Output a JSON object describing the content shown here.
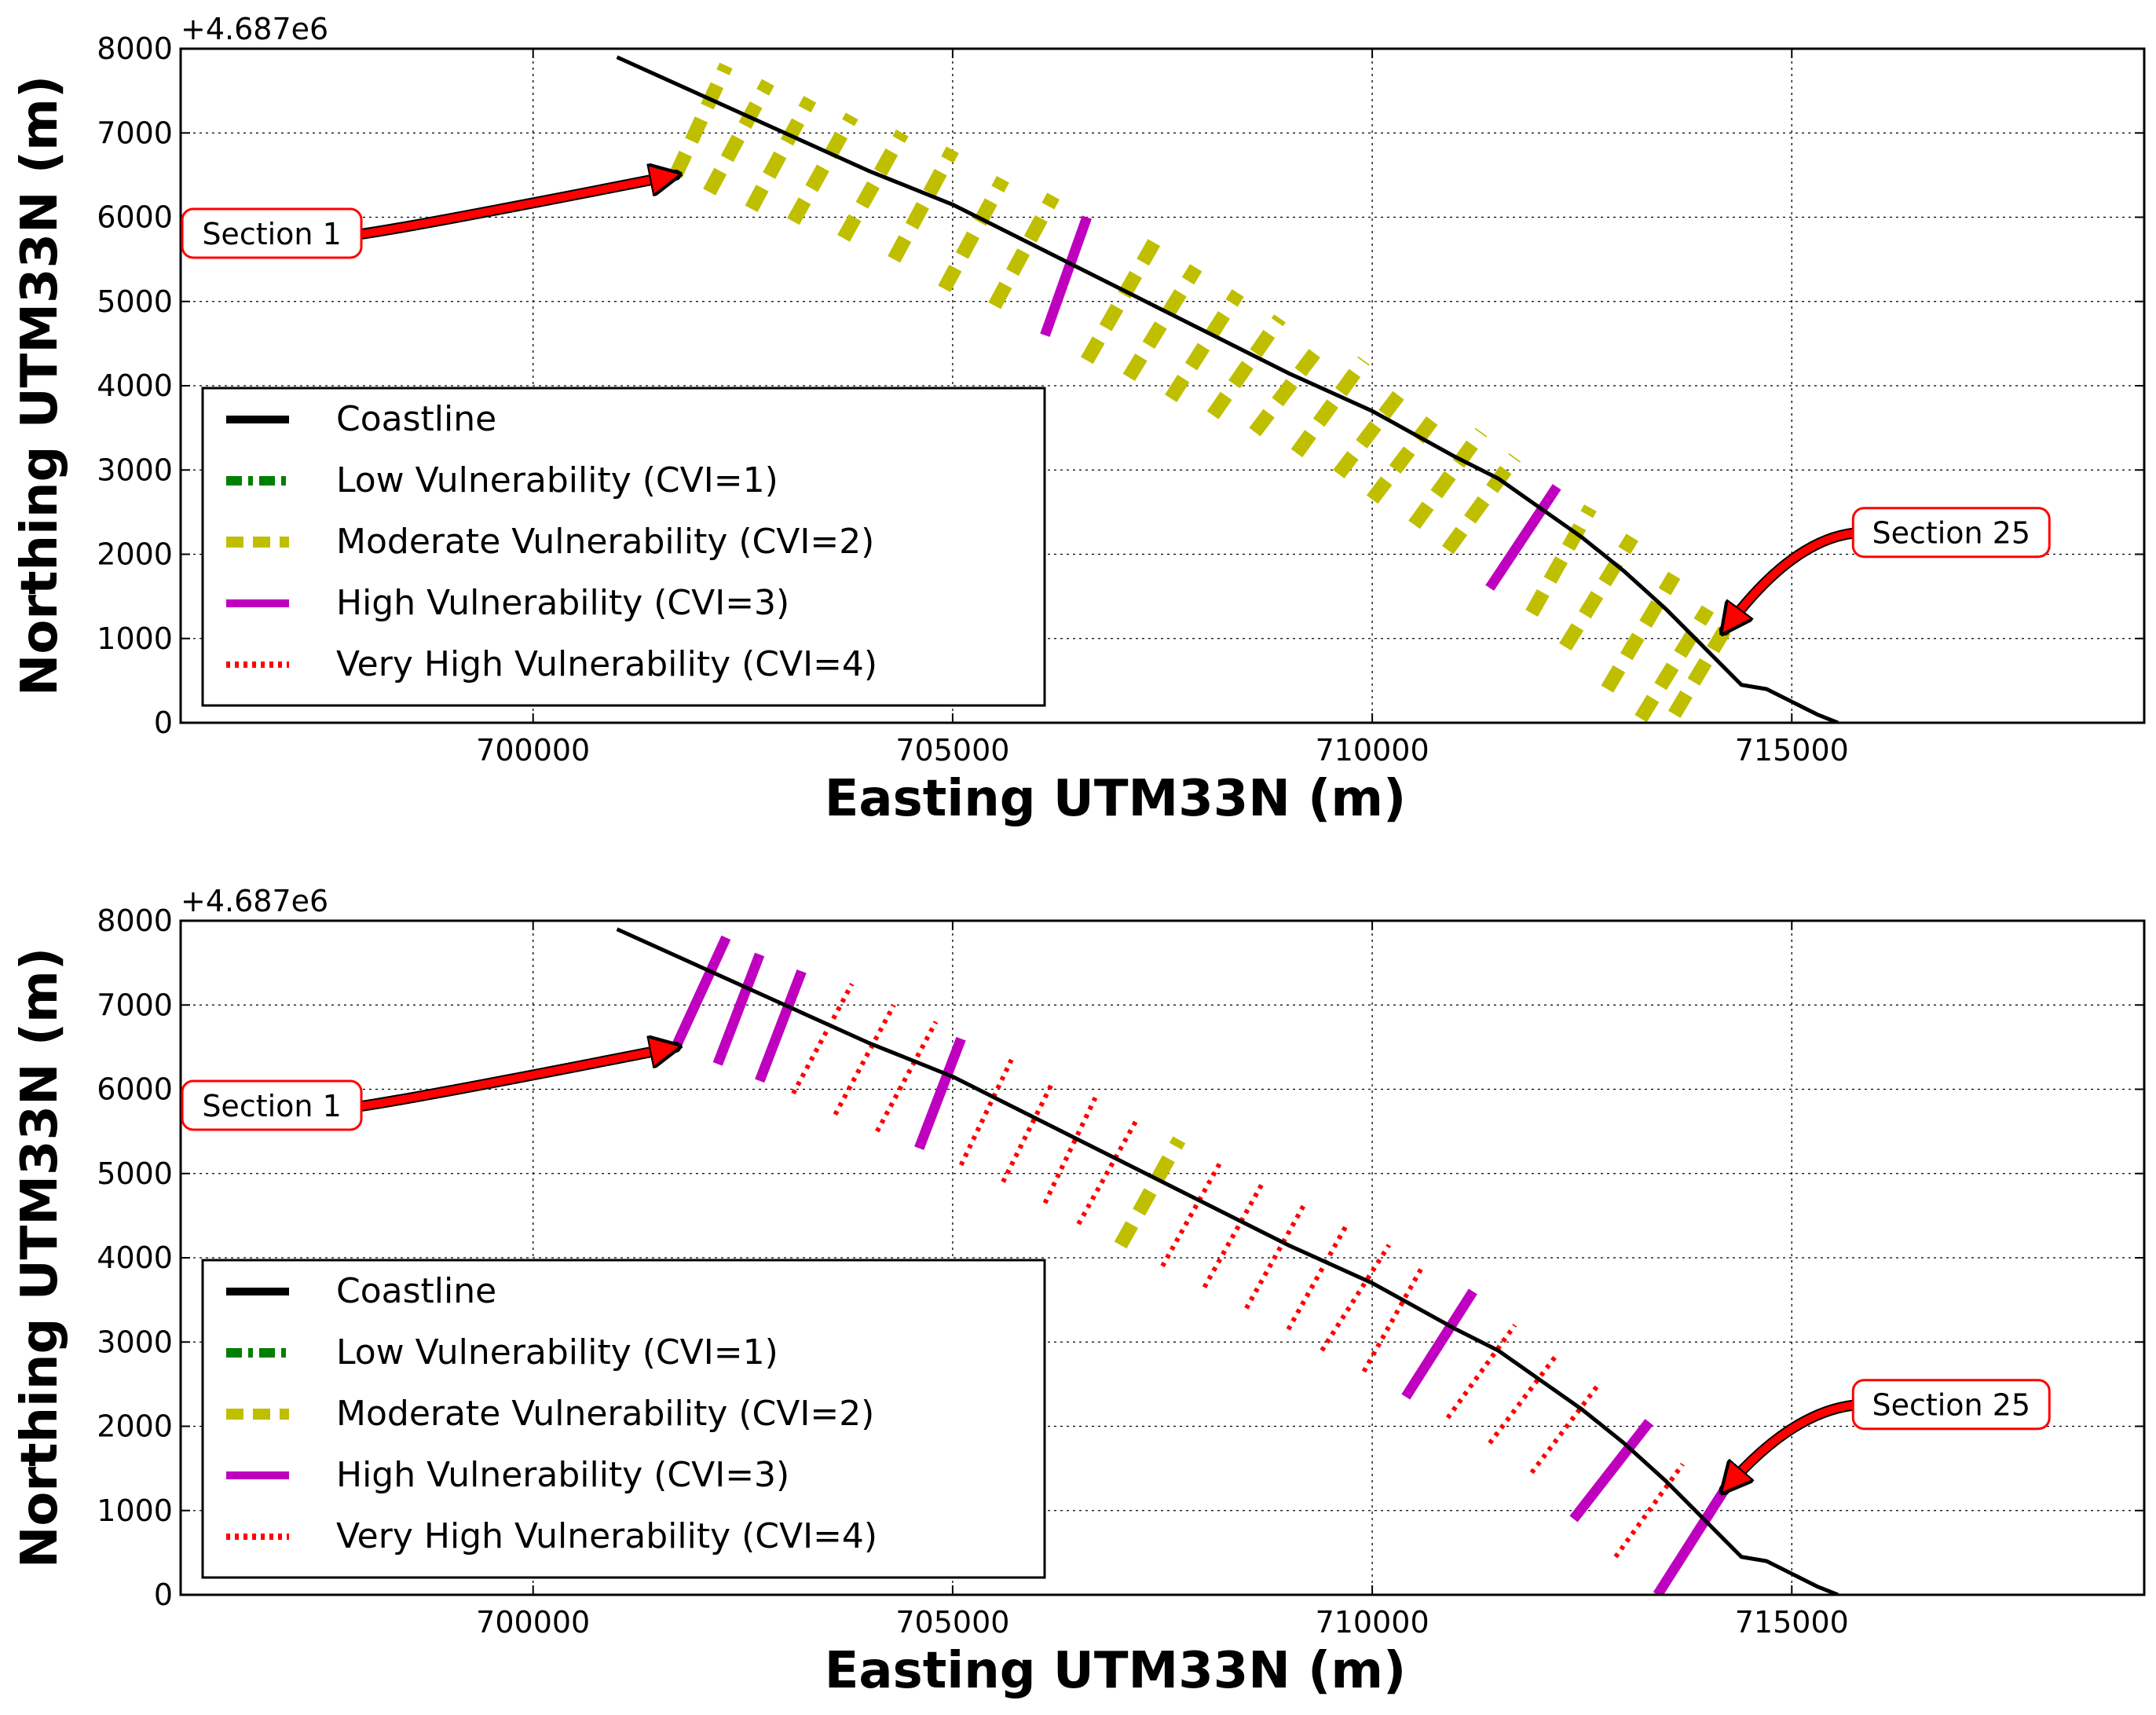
{
  "chart_data": [
    {
      "type": "line",
      "panel": "top",
      "offset_label": "+4.687e6",
      "xlabel": "Easting UTM33N (m)",
      "ylabel": "Northing UTM33N (m)",
      "xlim": [
        695800,
        719200
      ],
      "ylim": [
        0,
        8000
      ],
      "xticks": [
        700000,
        705000,
        710000,
        715000
      ],
      "xtick_labels": [
        "700000",
        "705000",
        "710000",
        "715000"
      ],
      "yticks": [
        0,
        1000,
        2000,
        3000,
        4000,
        5000,
        6000,
        7000,
        8000
      ],
      "ytick_labels": [
        "0",
        "1000",
        "2000",
        "3000",
        "4000",
        "5000",
        "6000",
        "7000",
        "8000"
      ],
      "grid": true,
      "legend": {
        "placement": "lower-left",
        "entries": [
          {
            "label": "Coastline",
            "color": "#000000",
            "style": "solid"
          },
          {
            "label": "Low Vulnerability (CVI=1)",
            "color": "#008000",
            "style": "dashdot"
          },
          {
            "label": "Moderate Vulnerability (CVI=2)",
            "color": "#bfbf00",
            "style": "dashed"
          },
          {
            "label": "High Vulnerability (CVI=3)",
            "color": "#bf00bf",
            "style": "solid"
          },
          {
            "label": "Very High Vulnerability (CVI=4)",
            "color": "#ff0000",
            "style": "dotted"
          }
        ]
      },
      "coastline": {
        "x": [
          701000,
          702000,
          703000,
          704000,
          705000,
          706000,
          707000,
          708000,
          709000,
          710000,
          711000,
          711500,
          712000,
          712500,
          713000,
          713500,
          714000,
          714400,
          714700,
          715000,
          715300,
          715550
        ],
        "y": [
          7900,
          7450,
          7000,
          6550,
          6150,
          5650,
          5150,
          4650,
          4150,
          3700,
          3150,
          2900,
          2550,
          2200,
          1800,
          1350,
          850,
          450,
          400,
          250,
          100,
          0
        ]
      },
      "sections": [
        {
          "id": 1,
          "cvi": 2,
          "x1": 701700,
          "y1": 6500,
          "x2": 702300,
          "y2": 7800
        },
        {
          "id": 2,
          "cvi": 2,
          "x1": 702100,
          "y1": 6300,
          "x2": 702800,
          "y2": 7600
        },
        {
          "id": 3,
          "cvi": 2,
          "x1": 702600,
          "y1": 6100,
          "x2": 703300,
          "y2": 7400
        },
        {
          "id": 4,
          "cvi": 2,
          "x1": 703100,
          "y1": 5950,
          "x2": 703800,
          "y2": 7200
        },
        {
          "id": 5,
          "cvi": 2,
          "x1": 703700,
          "y1": 5750,
          "x2": 704400,
          "y2": 7000
        },
        {
          "id": 6,
          "cvi": 2,
          "x1": 704300,
          "y1": 5500,
          "x2": 705000,
          "y2": 6800
        },
        {
          "id": 7,
          "cvi": 2,
          "x1": 704900,
          "y1": 5150,
          "x2": 705600,
          "y2": 6450
        },
        {
          "id": 8,
          "cvi": 2,
          "x1": 705500,
          "y1": 4950,
          "x2": 706200,
          "y2": 6250
        },
        {
          "id": 9,
          "cvi": 3,
          "x1": 706100,
          "y1": 4600,
          "x2": 706600,
          "y2": 6000
        },
        {
          "id": 10,
          "cvi": 2,
          "x1": 706600,
          "y1": 4300,
          "x2": 707400,
          "y2": 5700
        },
        {
          "id": 11,
          "cvi": 2,
          "x1": 707100,
          "y1": 4100,
          "x2": 707900,
          "y2": 5400
        },
        {
          "id": 12,
          "cvi": 2,
          "x1": 707600,
          "y1": 3850,
          "x2": 708400,
          "y2": 5100
        },
        {
          "id": 13,
          "cvi": 2,
          "x1": 708100,
          "y1": 3650,
          "x2": 708900,
          "y2": 4800
        },
        {
          "id": 14,
          "cvi": 2,
          "x1": 708600,
          "y1": 3450,
          "x2": 709400,
          "y2": 4500
        },
        {
          "id": 15,
          "cvi": 2,
          "x1": 709100,
          "y1": 3200,
          "x2": 709900,
          "y2": 4300
        },
        {
          "id": 16,
          "cvi": 2,
          "x1": 709600,
          "y1": 2950,
          "x2": 710400,
          "y2": 4000
        },
        {
          "id": 17,
          "cvi": 2,
          "x1": 710000,
          "y1": 2650,
          "x2": 710800,
          "y2": 3700
        },
        {
          "id": 18,
          "cvi": 2,
          "x1": 710500,
          "y1": 2350,
          "x2": 711300,
          "y2": 3450
        },
        {
          "id": 19,
          "cvi": 2,
          "x1": 710900,
          "y1": 2050,
          "x2": 711700,
          "y2": 3150
        },
        {
          "id": 20,
          "cvi": 3,
          "x1": 711400,
          "y1": 1600,
          "x2": 712200,
          "y2": 2800
        },
        {
          "id": 21,
          "cvi": 2,
          "x1": 711900,
          "y1": 1300,
          "x2": 712600,
          "y2": 2550
        },
        {
          "id": 22,
          "cvi": 2,
          "x1": 712300,
          "y1": 900,
          "x2": 713100,
          "y2": 2200
        },
        {
          "id": 23,
          "cvi": 2,
          "x1": 712800,
          "y1": 400,
          "x2": 713600,
          "y2": 1750
        },
        {
          "id": 24,
          "cvi": 2,
          "x1": 713200,
          "y1": 50,
          "x2": 714000,
          "y2": 1350
        },
        {
          "id": 25,
          "cvi": 2,
          "x1": 713600,
          "y1": 100,
          "x2": 714200,
          "y2": 1100
        }
      ],
      "annotations": [
        {
          "text": "Section 1",
          "x": 698000,
          "y": 5800,
          "target_x": 701700,
          "target_y": 6500
        },
        {
          "text": "Section 25",
          "x": 716900,
          "y": 2250,
          "target_x": 714200,
          "target_y": 1100
        }
      ]
    },
    {
      "type": "line",
      "panel": "bottom",
      "offset_label": "+4.687e6",
      "xlabel": "Easting UTM33N (m)",
      "ylabel": "Northing UTM33N (m)",
      "xlim": [
        695800,
        719200
      ],
      "ylim": [
        0,
        8000
      ],
      "xticks": [
        700000,
        705000,
        710000,
        715000
      ],
      "xtick_labels": [
        "700000",
        "705000",
        "710000",
        "715000"
      ],
      "yticks": [
        0,
        1000,
        2000,
        3000,
        4000,
        5000,
        6000,
        7000,
        8000
      ],
      "ytick_labels": [
        "0",
        "1000",
        "2000",
        "3000",
        "4000",
        "5000",
        "6000",
        "7000",
        "8000"
      ],
      "grid": true,
      "legend": {
        "placement": "lower-left",
        "entries": [
          {
            "label": "Coastline",
            "color": "#000000",
            "style": "solid"
          },
          {
            "label": "Low Vulnerability (CVI=1)",
            "color": "#008000",
            "style": "dashdot"
          },
          {
            "label": "Moderate Vulnerability (CVI=2)",
            "color": "#bfbf00",
            "style": "dashed"
          },
          {
            "label": "High Vulnerability (CVI=3)",
            "color": "#bf00bf",
            "style": "solid"
          },
          {
            "label": "Very High Vulnerability (CVI=4)",
            "color": "#ff0000",
            "style": "dotted"
          }
        ]
      },
      "coastline": {
        "x": [
          701000,
          702000,
          703000,
          704000,
          705000,
          706000,
          707000,
          708000,
          709000,
          710000,
          711000,
          711500,
          712000,
          712500,
          713000,
          713500,
          714000,
          714400,
          714700,
          715000,
          715300,
          715550
        ],
        "y": [
          7900,
          7450,
          7000,
          6550,
          6150,
          5650,
          5150,
          4650,
          4150,
          3700,
          3150,
          2900,
          2550,
          2200,
          1800,
          1350,
          850,
          450,
          400,
          250,
          100,
          0
        ]
      },
      "sections": [
        {
          "id": 1,
          "cvi": 3,
          "x1": 701700,
          "y1": 6500,
          "x2": 702300,
          "y2": 7800
        },
        {
          "id": 2,
          "cvi": 3,
          "x1": 702200,
          "y1": 6300,
          "x2": 702700,
          "y2": 7600
        },
        {
          "id": 3,
          "cvi": 3,
          "x1": 702700,
          "y1": 6100,
          "x2": 703200,
          "y2": 7400
        },
        {
          "id": 4,
          "cvi": 4,
          "x1": 703100,
          "y1": 5950,
          "x2": 703800,
          "y2": 7250
        },
        {
          "id": 5,
          "cvi": 4,
          "x1": 703600,
          "y1": 5700,
          "x2": 704300,
          "y2": 7000
        },
        {
          "id": 6,
          "cvi": 4,
          "x1": 704100,
          "y1": 5500,
          "x2": 704800,
          "y2": 6800
        },
        {
          "id": 7,
          "cvi": 3,
          "x1": 704600,
          "y1": 5300,
          "x2": 705100,
          "y2": 6600
        },
        {
          "id": 8,
          "cvi": 4,
          "x1": 705100,
          "y1": 5100,
          "x2": 705700,
          "y2": 6350
        },
        {
          "id": 9,
          "cvi": 4,
          "x1": 705600,
          "y1": 4900,
          "x2": 706200,
          "y2": 6100
        },
        {
          "id": 10,
          "cvi": 4,
          "x1": 706100,
          "y1": 4650,
          "x2": 706700,
          "y2": 5900
        },
        {
          "id": 11,
          "cvi": 4,
          "x1": 706500,
          "y1": 4400,
          "x2": 707200,
          "y2": 5650
        },
        {
          "id": 12,
          "cvi": 2,
          "x1": 707000,
          "y1": 4150,
          "x2": 707700,
          "y2": 5400
        },
        {
          "id": 13,
          "cvi": 4,
          "x1": 707500,
          "y1": 3900,
          "x2": 708200,
          "y2": 5150
        },
        {
          "id": 14,
          "cvi": 4,
          "x1": 708000,
          "y1": 3650,
          "x2": 708700,
          "y2": 4900
        },
        {
          "id": 15,
          "cvi": 4,
          "x1": 708500,
          "y1": 3400,
          "x2": 709200,
          "y2": 4650
        },
        {
          "id": 16,
          "cvi": 4,
          "x1": 709000,
          "y1": 3150,
          "x2": 709700,
          "y2": 4400
        },
        {
          "id": 17,
          "cvi": 4,
          "x1": 709400,
          "y1": 2900,
          "x2": 710200,
          "y2": 4150
        },
        {
          "id": 18,
          "cvi": 4,
          "x1": 709900,
          "y1": 2650,
          "x2": 710600,
          "y2": 3900
        },
        {
          "id": 19,
          "cvi": 3,
          "x1": 710400,
          "y1": 2350,
          "x2": 711200,
          "y2": 3600
        },
        {
          "id": 20,
          "cvi": 4,
          "x1": 710900,
          "y1": 2100,
          "x2": 711700,
          "y2": 3200
        },
        {
          "id": 21,
          "cvi": 4,
          "x1": 711400,
          "y1": 1800,
          "x2": 712200,
          "y2": 2850
        },
        {
          "id": 22,
          "cvi": 4,
          "x1": 711900,
          "y1": 1450,
          "x2": 712700,
          "y2": 2500
        },
        {
          "id": 23,
          "cvi": 3,
          "x1": 712400,
          "y1": 900,
          "x2": 713300,
          "y2": 2050
        },
        {
          "id": 24,
          "cvi": 4,
          "x1": 712900,
          "y1": 450,
          "x2": 713700,
          "y2": 1550
        },
        {
          "id": 25,
          "cvi": 3,
          "x1": 713400,
          "y1": 0,
          "x2": 714200,
          "y2": 1250
        }
      ],
      "annotations": [
        {
          "text": "Section 1",
          "x": 698000,
          "y": 5800,
          "target_x": 701700,
          "target_y": 6500
        },
        {
          "text": "Section 25",
          "x": 716900,
          "y": 2250,
          "target_x": 714200,
          "target_y": 1250
        }
      ]
    }
  ]
}
